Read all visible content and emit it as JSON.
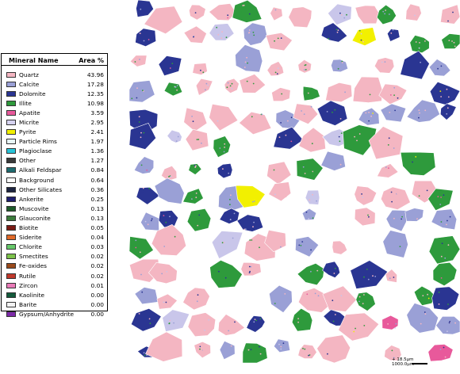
{
  "legend": {
    "header_name": "Mineral Name",
    "header_area": "Area %",
    "rows": [
      {
        "name": "Quartz",
        "value": "43.96",
        "color": "#f4b6c2"
      },
      {
        "name": "Calcite",
        "value": "17.28",
        "color": "#9aa0d6"
      },
      {
        "name": "Dolomite",
        "value": "12.35",
        "color": "#2a3592"
      },
      {
        "name": "Illite",
        "value": "10.98",
        "color": "#2e9a3c"
      },
      {
        "name": "Apatite",
        "value": "3.59",
        "color": "#e8599b"
      },
      {
        "name": "Micrite",
        "value": "2.95",
        "color": "#d6d3f0"
      },
      {
        "name": "Pyrite",
        "value": "2.41",
        "color": "#f2f000"
      },
      {
        "name": "Particle Rims",
        "value": "1.97",
        "color": "#e8f6f8"
      },
      {
        "name": "Plagioclase",
        "value": "1.36",
        "color": "#28c4d8"
      },
      {
        "name": "Other",
        "value": "1.27",
        "color": "#3a3a3a"
      },
      {
        "name": "Alkali Feldspar",
        "value": "0.84",
        "color": "#1f6c70"
      },
      {
        "name": "Background",
        "value": "0.64",
        "color": "#ffffff"
      },
      {
        "name": "Other Silicates",
        "value": "0.36",
        "color": "#1d2440"
      },
      {
        "name": "Ankerite",
        "value": "0.25",
        "color": "#1e1e6e"
      },
      {
        "name": "Muscovite",
        "value": "0.13",
        "color": "#1e5b2a"
      },
      {
        "name": "Glauconite",
        "value": "0.13",
        "color": "#3c7c3c"
      },
      {
        "name": "Biotite",
        "value": "0.05",
        "color": "#7a1a14"
      },
      {
        "name": "Siderite",
        "value": "0.04",
        "color": "#e06a2a"
      },
      {
        "name": "Chlorite",
        "value": "0.03",
        "color": "#66c86a"
      },
      {
        "name": "Smectites",
        "value": "0.02",
        "color": "#7cc24a"
      },
      {
        "name": "Fe-oxides",
        "value": "0.02",
        "color": "#9a4a1c"
      },
      {
        "name": "Rutile",
        "value": "0.02",
        "color": "#c0392b"
      },
      {
        "name": "Zircon",
        "value": "0.01",
        "color": "#e97bb8"
      },
      {
        "name": "Kaolinite",
        "value": "0.00",
        "color": "#145a3c"
      },
      {
        "name": "Barite",
        "value": "0.00",
        "color": "#f2f2f2"
      },
      {
        "name": "Gypsum/Anhydrite",
        "value": "0.00",
        "color": "#7c2aa8"
      }
    ]
  },
  "scale": {
    "line1": "+ 18.5µm",
    "line2": "1000.0µm"
  }
}
